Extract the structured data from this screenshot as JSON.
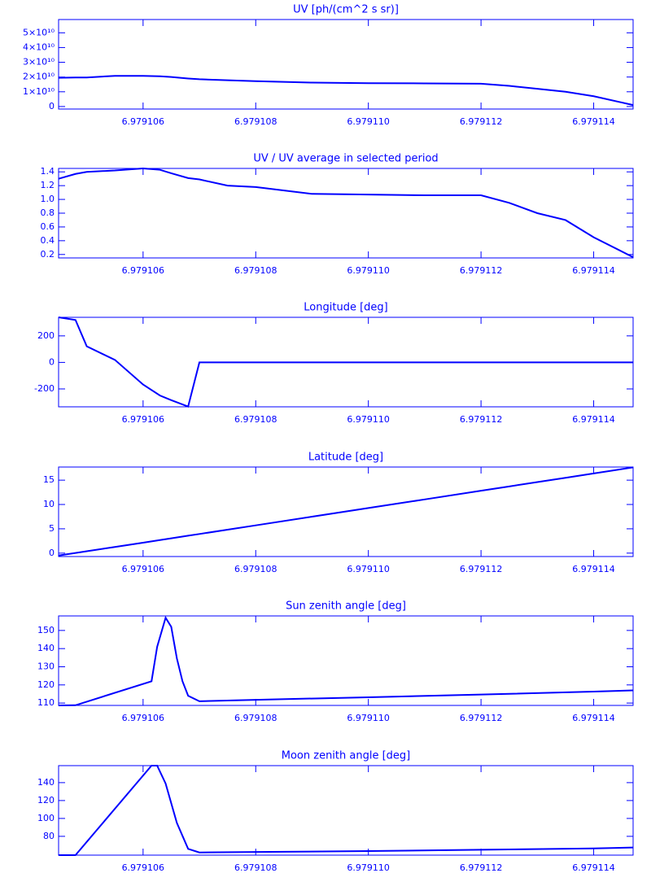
{
  "chart_data": [
    {
      "type": "line",
      "title": "UV [ph/(cm^2 s sr)]",
      "color": "#0000ff",
      "x": [
        6.9791045,
        6.9791048,
        6.979105,
        6.9791055,
        6.979106,
        6.9791063,
        6.9791065,
        6.9791068,
        6.979107,
        6.9791075,
        6.979108,
        6.979109,
        6.97911,
        6.979111,
        6.979112,
        6.9791125,
        6.979113,
        6.9791135,
        6.979114,
        6.9791147
      ],
      "values": [
        19500000000,
        19700000000,
        19700000000,
        20800000000,
        20800000000,
        20500000000,
        20000000000,
        19000000000,
        18500000000,
        17800000000,
        17200000000,
        16200000000,
        15800000000,
        15700000000,
        15500000000,
        14000000000,
        12000000000,
        10000000000,
        7000000000,
        1000000000
      ],
      "xlim": [
        6.9791045,
        6.9791147
      ],
      "ylim": [
        -1700000000,
        59000000000
      ],
      "xticks": [
        6.979106,
        6.979108,
        {
          "value": 6.97911,
          "label": "6.979110"
        },
        6.979112,
        6.979114
      ],
      "yticks": [
        0,
        {
          "value": 10000000000,
          "label": "1×10¹⁰"
        },
        {
          "value": 20000000000,
          "label": "2×10¹⁰"
        },
        {
          "value": 30000000000,
          "label": "3×10¹⁰"
        },
        {
          "value": 40000000000,
          "label": "4×10¹⁰"
        },
        {
          "value": 50000000000,
          "label": "5×10¹⁰"
        }
      ]
    },
    {
      "type": "line",
      "title": "UV / UV average in selected period",
      "color": "#0000ff",
      "x": [
        6.9791045,
        6.9791048,
        6.979105,
        6.9791055,
        6.979106,
        6.9791063,
        6.9791065,
        6.9791068,
        6.979107,
        6.9791075,
        6.979108,
        6.979109,
        6.97911,
        6.979111,
        6.979112,
        6.9791125,
        6.979113,
        6.9791135,
        6.979114,
        6.9791147
      ],
      "values": [
        1.3,
        1.37,
        1.4,
        1.42,
        1.45,
        1.43,
        1.38,
        1.31,
        1.29,
        1.2,
        1.18,
        1.08,
        1.07,
        1.06,
        1.06,
        0.95,
        0.8,
        0.7,
        0.45,
        0.16
      ],
      "xlim": [
        6.9791045,
        6.9791147
      ],
      "ylim": [
        0.15,
        1.45
      ],
      "xticks": [
        6.979106,
        6.979108,
        {
          "value": 6.97911,
          "label": "6.979110"
        },
        6.979112,
        6.979114
      ],
      "yticks": [
        0.2,
        0.4,
        0.6,
        0.8,
        {
          "value": 1,
          "label": "1.0"
        },
        1.2,
        1.4
      ]
    },
    {
      "type": "line",
      "title": "Longitude [deg]",
      "color": "#0000ff",
      "x": [
        6.9791045,
        6.9791048,
        6.979105,
        6.9791055,
        6.979106,
        6.9791063,
        6.9791065,
        6.9791068,
        6.979107,
        6.9791075,
        6.979108,
        6.979109,
        6.97911,
        6.979111,
        6.979112,
        6.9791125,
        6.979113,
        6.9791135,
        6.979114,
        6.9791147
      ],
      "values": [
        340,
        320,
        121,
        19,
        -167,
        -250,
        -285,
        -333,
        0,
        0,
        0,
        0,
        0,
        0,
        0,
        0,
        0,
        0,
        0,
        0
      ],
      "xlim": [
        6.9791045,
        6.9791147
      ],
      "ylim": [
        -335,
        340
      ],
      "xticks": [
        6.979106,
        6.979108,
        {
          "value": 6.97911,
          "label": "6.979110"
        },
        6.979112,
        6.979114
      ],
      "yticks": [
        -200,
        0,
        200
      ]
    },
    {
      "type": "line",
      "title": "Latitude [deg]",
      "color": "#0000ff",
      "x": [
        6.9791045,
        6.9791048,
        6.979105,
        6.9791055,
        6.979106,
        6.9791063,
        6.9791065,
        6.9791068,
        6.979107,
        6.9791075,
        6.979108,
        6.979109,
        6.97911,
        6.979111,
        6.979112,
        6.9791125,
        6.979113,
        6.9791135,
        6.979114,
        6.9791147
      ],
      "values": [
        -0.5,
        0.03,
        0.38,
        1.27,
        2.15,
        2.69,
        3.04,
        3.58,
        3.93,
        4.82,
        5.71,
        7.49,
        9.27,
        11.04,
        12.82,
        13.71,
        14.6,
        15.49,
        16.38,
        17.63
      ],
      "xlim": [
        6.9791045,
        6.9791147
      ],
      "ylim": [
        -0.7,
        17.7
      ],
      "xticks": [
        6.979106,
        6.979108,
        {
          "value": 6.97911,
          "label": "6.979110"
        },
        6.979112,
        6.979114
      ],
      "yticks": [
        0,
        5,
        10,
        15
      ]
    },
    {
      "type": "line",
      "title": "Sun zenith angle [deg]",
      "color": "#0000ff",
      "x": [
        6.9791045,
        6.9791048,
        6.97910615,
        6.97910625,
        6.9791064,
        6.9791065,
        6.9791066,
        6.9791067,
        6.9791068,
        6.979107,
        6.979108,
        6.97911,
        6.979112,
        6.979114,
        6.9791147
      ],
      "values": [
        108.7,
        108.8,
        122,
        141,
        157,
        152,
        134.6,
        122,
        114,
        111,
        111.8,
        113.2,
        114.7,
        116.3,
        117
      ],
      "xlim": [
        6.9791045,
        6.9791147
      ],
      "ylim": [
        108.7,
        158
      ],
      "xticks": [
        6.979106,
        6.979108,
        {
          "value": 6.97911,
          "label": "6.979110"
        },
        6.979112,
        6.979114
      ],
      "yticks": [
        110,
        120,
        130,
        140,
        150
      ]
    },
    {
      "type": "line",
      "title": "Moon zenith angle [deg]",
      "color": "#0000ff",
      "x": [
        6.9791045,
        6.9791048,
        6.97910615,
        6.97910625,
        6.9791064,
        6.9791066,
        6.9791068,
        6.979107,
        6.979108,
        6.97911,
        6.979112,
        6.979114,
        6.9791147
      ],
      "values": [
        59,
        59,
        159,
        159,
        139,
        95,
        66,
        62,
        62.5,
        63.5,
        65,
        66.5,
        67.5
      ],
      "xlim": [
        6.9791045,
        6.9791147
      ],
      "ylim": [
        59,
        159
      ],
      "xticks": [
        6.979106,
        6.979108,
        {
          "value": 6.97911,
          "label": "6.979110"
        },
        6.979112,
        6.979114
      ],
      "yticks": [
        80,
        100,
        120,
        140
      ]
    }
  ]
}
